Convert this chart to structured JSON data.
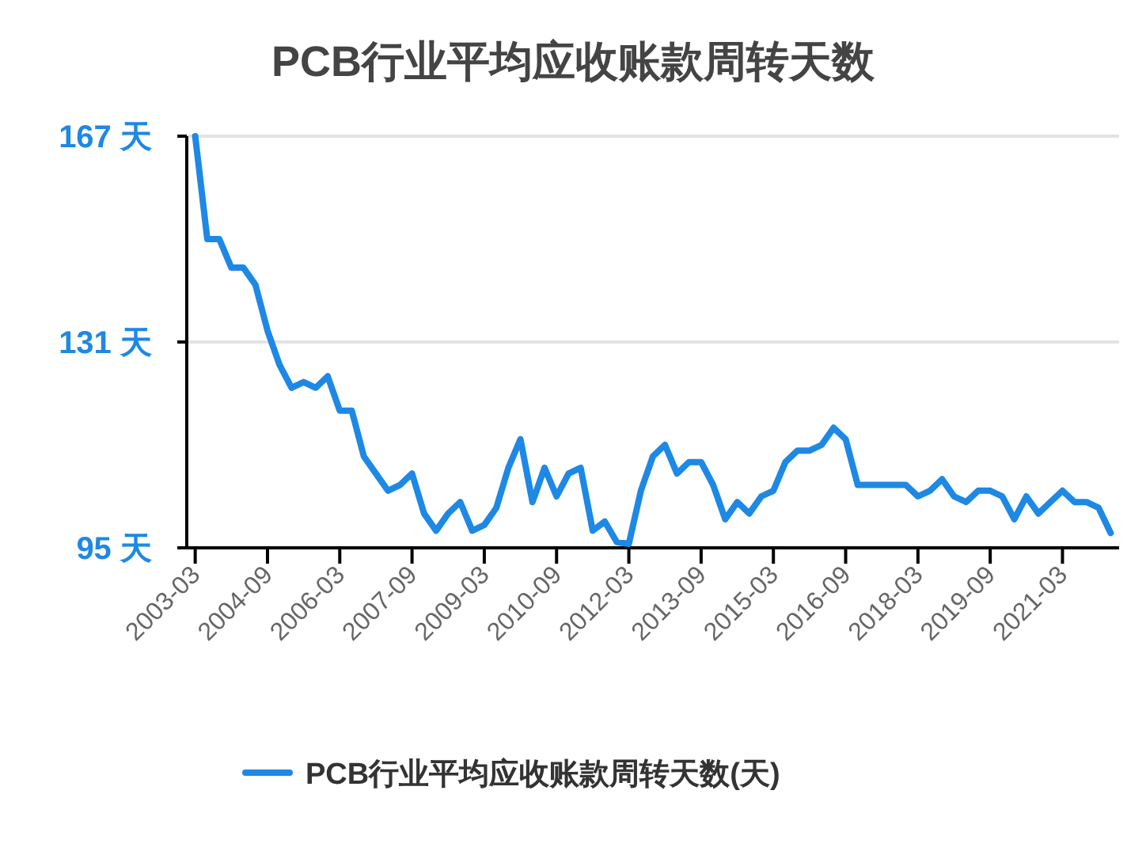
{
  "chart_data": {
    "type": "line",
    "title": "PCB行业平均应收账款周转天数",
    "categories": [
      "2003-03",
      null,
      null,
      null,
      null,
      null,
      "2004-09",
      null,
      null,
      null,
      null,
      null,
      "2006-03",
      null,
      null,
      null,
      null,
      null,
      "2007-09",
      null,
      null,
      null,
      null,
      null,
      "2009-03",
      null,
      null,
      null,
      null,
      null,
      "2010-09",
      null,
      null,
      null,
      null,
      null,
      "2012-03",
      null,
      null,
      null,
      null,
      null,
      "2013-09",
      null,
      null,
      null,
      null,
      null,
      "2015-03",
      null,
      null,
      null,
      null,
      null,
      "2016-09",
      null,
      null,
      null,
      null,
      null,
      "2018-03",
      null,
      null,
      null,
      null,
      null,
      "2019-09",
      null,
      null,
      null,
      null,
      null,
      "2021-03",
      null,
      null,
      null,
      null
    ],
    "series": [
      {
        "name": "PCB行业平均应收账款周转天数(天)",
        "color": "#1e88e5",
        "values": [
          167,
          149,
          149,
          144,
          144,
          141,
          133,
          127,
          123,
          124,
          123,
          125,
          119,
          119,
          111,
          108,
          105,
          106,
          108,
          101,
          98,
          101,
          103,
          98,
          99,
          102,
          109,
          114,
          103,
          109,
          104,
          108,
          109,
          98,
          99.6,
          96,
          95.7,
          105,
          111,
          113,
          108,
          110,
          110,
          106,
          100,
          103,
          101,
          104,
          105,
          110,
          112,
          112,
          113,
          116,
          114,
          106,
          106,
          106,
          106,
          106,
          104,
          105,
          107,
          104,
          103,
          105,
          105,
          104,
          100,
          104,
          101,
          103,
          105,
          103,
          103,
          102,
          97.6
        ]
      }
    ],
    "ylim": [
      95,
      167
    ],
    "yticks": [
      {
        "value": 95,
        "label": "95 天"
      },
      {
        "value": 131,
        "label": "131 天"
      },
      {
        "value": 167,
        "label": "167 天"
      }
    ],
    "grid": "y",
    "legend": "bottom",
    "marker": "none",
    "line_style": "solid"
  }
}
